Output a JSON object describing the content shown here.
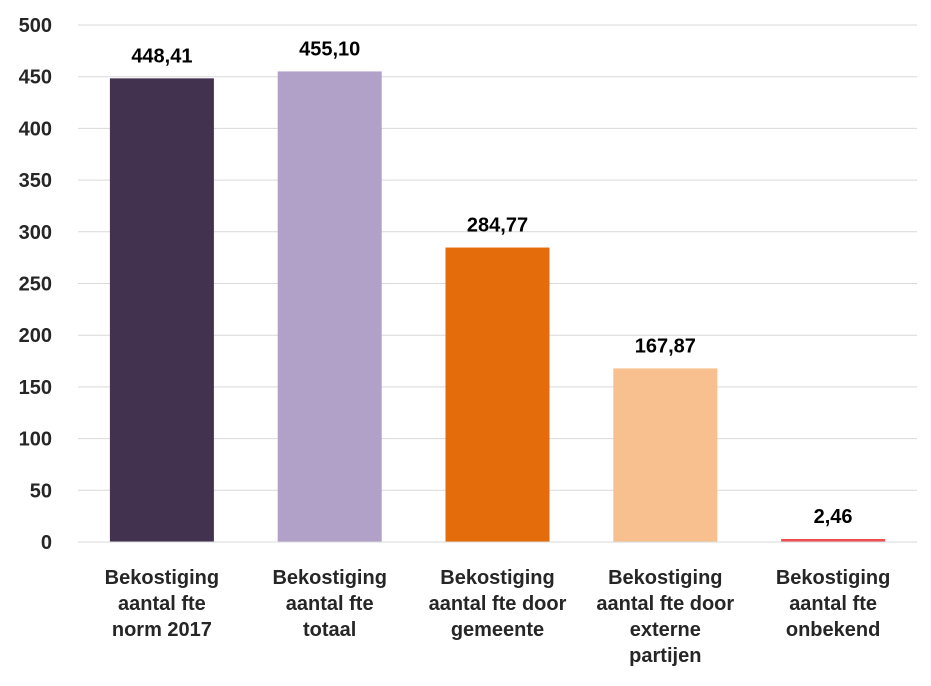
{
  "chart_data": {
    "type": "bar",
    "categories": [
      [
        "Bekostiging",
        "aantal fte",
        "norm 2017"
      ],
      [
        "Bekostiging",
        "aantal fte",
        "totaal"
      ],
      [
        "Bekostiging",
        "aantal fte door",
        "gemeente"
      ],
      [
        "Bekostiging",
        "aantal fte door",
        "externe",
        "partijen"
      ],
      [
        "Bekostiging",
        "aantal fte",
        "onbekend"
      ]
    ],
    "values": [
      448.41,
      455.1,
      284.77,
      167.87,
      2.46
    ],
    "data_labels": [
      "448,41",
      "455,10",
      "284,77",
      "167,87",
      "2,46"
    ],
    "bar_colors": [
      "#433150",
      "#B1A0C7",
      "#E46C0A",
      "#F9C08F",
      "#F04E4E"
    ],
    "ylim": [
      0,
      500
    ],
    "yticks": [
      0,
      50,
      100,
      150,
      200,
      250,
      300,
      350,
      400,
      450,
      500
    ],
    "grid": true,
    "legend": false
  }
}
